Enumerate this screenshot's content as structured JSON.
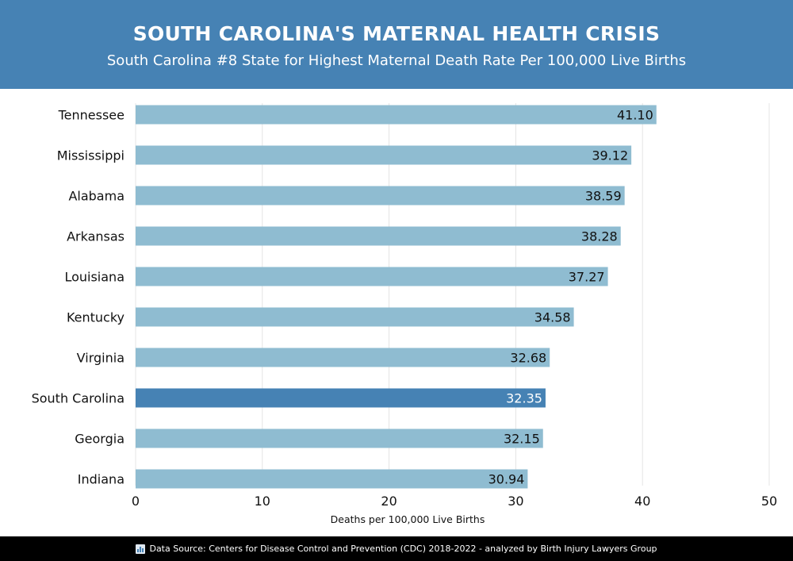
{
  "header": {
    "title": "SOUTH CAROLINA'S MATERNAL HEALTH CRISIS",
    "subtitle": "South Carolina #8 State for Highest Maternal Death Rate Per 100,000 Live Births"
  },
  "footer": {
    "icon": "bar-chart-icon",
    "text": "Data Source: Centers for Disease Control and Prevention (CDC) 2018-2022 - analyzed by Birth Injury Lawyers Group"
  },
  "colors": {
    "header_bg": "#4682b4",
    "bar_default": "#8fbcd1",
    "bar_highlight": "#4682b4",
    "footer_bg": "#000000"
  },
  "chart_data": {
    "type": "bar",
    "orientation": "horizontal",
    "categories": [
      "Tennessee",
      "Mississippi",
      "Alabama",
      "Arkansas",
      "Louisiana",
      "Kentucky",
      "Virginia",
      "South Carolina",
      "Georgia",
      "Indiana"
    ],
    "values": [
      41.1,
      39.12,
      38.59,
      38.28,
      37.27,
      34.58,
      32.68,
      32.35,
      32.15,
      30.94
    ],
    "value_labels": [
      "41.10",
      "39.12",
      "38.59",
      "38.28",
      "37.27",
      "34.58",
      "32.68",
      "32.35",
      "32.15",
      "30.94"
    ],
    "highlight": "South Carolina",
    "xlabel": "Deaths per 100,000 Live Births",
    "xlim": [
      0,
      50
    ],
    "xticks": [
      0,
      10,
      20,
      30,
      40,
      50
    ],
    "grid": true
  }
}
